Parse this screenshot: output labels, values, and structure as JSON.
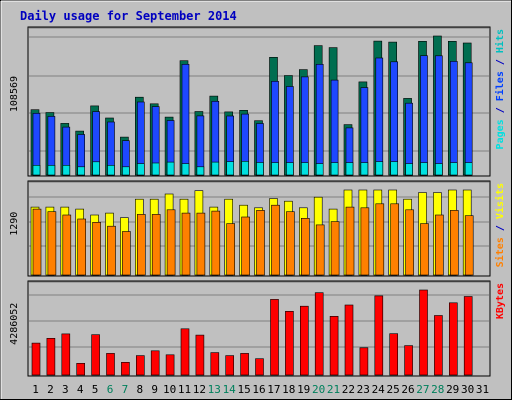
{
  "chart_data": {
    "type": "bar",
    "title": "Daily usage for September 2014",
    "days": [
      "1",
      "2",
      "3",
      "4",
      "5",
      "6",
      "7",
      "8",
      "9",
      "10",
      "11",
      "12",
      "13",
      "14",
      "15",
      "16",
      "17",
      "18",
      "19",
      "20",
      "21",
      "22",
      "23",
      "24",
      "25",
      "26",
      "27",
      "28",
      "29",
      "30",
      "31"
    ],
    "weekend_days": [
      "6",
      "7",
      "13",
      "14",
      "20",
      "21",
      "27",
      "28"
    ],
    "panels": {
      "hits_files_pages": {
        "y_max_label": "108569",
        "y_max": 108569,
        "legend": [
          {
            "label": "Pages",
            "color": "#00e0e0"
          },
          {
            "label": "/",
            "color": "#0000c0"
          },
          {
            "label": "Files",
            "color": "#0040ff"
          },
          {
            "label": "/",
            "color": "#0000c0"
          },
          {
            "label": "Hits",
            "color": "#00c0c0"
          }
        ],
        "series": [
          {
            "name": "Hits",
            "color": "#006e50",
            "values": [
              51000,
              48800,
              40300,
              34300,
              54000,
              44500,
              29600,
              60800,
              55600,
              45200,
              89300,
              49600,
              61600,
              49300,
              50500,
              42400,
              91900,
              77700,
              82300,
              101100,
              99500,
              39400,
              72700,
              104600,
              103800,
              59800,
              104400,
              108569,
              104400,
              103100,
              0
            ]
          },
          {
            "name": "Files",
            "color": "#1e48ff",
            "values": [
              48200,
              45800,
              37400,
              31600,
              49500,
              41400,
              26800,
              57000,
              53400,
              42600,
              86500,
              46200,
              57600,
              46100,
              47600,
              40200,
              73200,
              69100,
              76600,
              86500,
              74100,
              36800,
              68300,
              91400,
              88400,
              56100,
              93200,
              93100,
              88700,
              87600,
              0
            ]
          },
          {
            "name": "Pages",
            "color": "#00e0e0",
            "values": [
              7600,
              7600,
              7600,
              6400,
              10300,
              7600,
              6400,
              8900,
              9400,
              10100,
              8900,
              6400,
              10100,
              10500,
              10700,
              9800,
              9700,
              9700,
              9700,
              8900,
              9700,
              9700,
              9700,
              10500,
              10500,
              8900,
              9700,
              8900,
              9700,
              9700,
              0
            ]
          }
        ]
      },
      "visits_sites": {
        "y_max_label": "1290",
        "y_max": 1290,
        "legend": [
          {
            "label": "Sites",
            "color": "#ff8000"
          },
          {
            "label": "/",
            "color": "#0000c0"
          },
          {
            "label": "Visits",
            "color": "#ffff00"
          }
        ],
        "series": [
          {
            "name": "Visits",
            "color": "#ffff00",
            "values": [
              1030,
              1030,
              1030,
              1000,
              910,
              940,
              870,
              1150,
              1150,
              1230,
              1150,
              1280,
              1030,
              1150,
              1060,
              1020,
              1160,
              1120,
              1020,
              1180,
              1000,
              1290,
              1290,
              1290,
              1290,
              1150,
              1250,
              1250,
              1290,
              1290,
              0
            ]
          },
          {
            "name": "Sites",
            "color": "#ff8000",
            "values": [
              1000,
              960,
              910,
              850,
              800,
              740,
              660,
              920,
              920,
              990,
              940,
              940,
              970,
              780,
              880,
              980,
              1060,
              960,
              860,
              760,
              810,
              1030,
              1020,
              1080,
              1080,
              990,
              780,
              910,
              980,
              900,
              0
            ]
          }
        ]
      },
      "kbytes": {
        "y_max_label": "4286052",
        "y_max": 4286052,
        "legend": [
          {
            "label": "KBytes",
            "color": "#ff0000"
          }
        ],
        "series": [
          {
            "name": "KBytes",
            "color": "#ff0000",
            "values": [
              1610000,
              1850000,
              2070000,
              590000,
              2030000,
              1090000,
              640000,
              980000,
              1220000,
              1020000,
              2330000,
              2010000,
              1130000,
              980000,
              1090000,
              820000,
              3810000,
              3210000,
              3470000,
              4150000,
              2960000,
              3530000,
              1370000,
              3990000,
              2080000,
              1480000,
              4286052,
              3000000,
              3640000,
              3960000,
              0
            ]
          }
        ]
      }
    }
  }
}
